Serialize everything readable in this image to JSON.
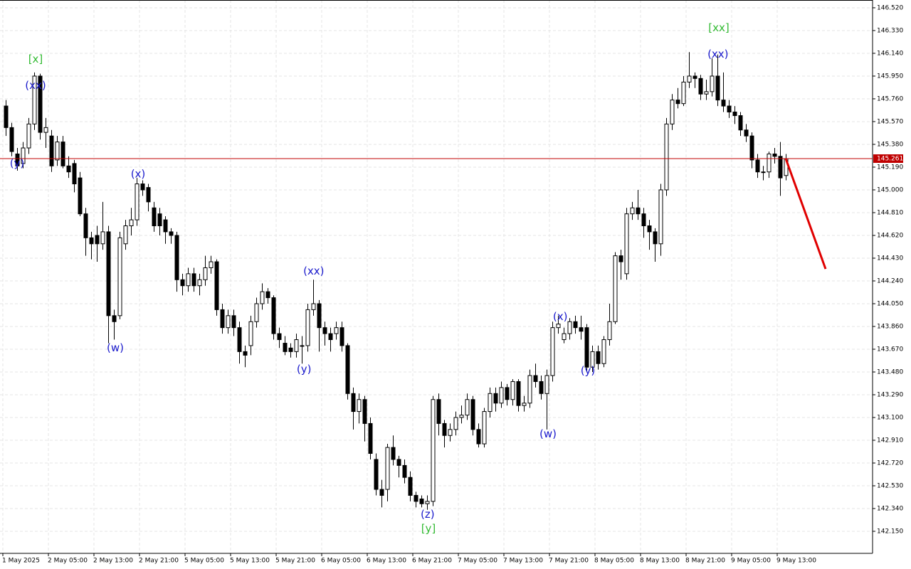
{
  "chart_data": {
    "type": "candlestick",
    "categories": [
      "1 May 2025",
      null,
      null,
      null,
      null,
      null,
      null,
      null,
      "2 May 05:00",
      null,
      null,
      null,
      null,
      null,
      null,
      null,
      "2 May 13:00",
      null,
      null,
      null,
      null,
      null,
      null,
      null,
      "2 May 21:00",
      null,
      null,
      null,
      null,
      null,
      null,
      null,
      "5 May 05:00",
      null,
      null,
      null,
      null,
      null,
      null,
      null,
      "5 May 13:00",
      null,
      null,
      null,
      null,
      null,
      null,
      null,
      "5 May 21:00",
      null,
      null,
      null,
      null,
      null,
      null,
      null,
      "6 May 05:00",
      null,
      null,
      null,
      null,
      null,
      null,
      null,
      "6 May 13:00",
      null,
      null,
      null,
      null,
      null,
      null,
      null,
      "6 May 21:00",
      null,
      null,
      null,
      null,
      null,
      null,
      null,
      "7 May 05:00",
      null,
      null,
      null,
      null,
      null,
      null,
      null,
      "7 May 13:00",
      null,
      null,
      null,
      null,
      null,
      null,
      null,
      "7 May 21:00",
      null,
      null,
      null,
      null,
      null,
      null,
      null,
      "8 May 05:00",
      null,
      null,
      null,
      null,
      null,
      null,
      null,
      "8 May 13:00",
      null,
      null,
      null,
      null,
      null,
      null,
      null,
      "8 May 21:00",
      null,
      null,
      null,
      null,
      null,
      null,
      null,
      "9 May 05:00",
      null,
      null,
      null,
      null,
      null,
      null,
      null,
      "9 May 13:00",
      null
    ],
    "open": [
      145.7,
      145.52,
      145.3,
      145.22,
      145.35,
      145.55,
      145.95,
      145.48,
      145.45,
      145.25,
      145.4,
      145.2,
      145.22,
      145.1,
      144.8,
      144.6,
      144.62,
      144.55,
      144.65,
      143.95,
      143.95,
      144.55,
      144.7,
      144.75,
      145.05,
      145.02,
      144.85,
      144.8,
      144.75,
      144.65,
      144.62,
      144.25,
      144.2,
      144.3,
      144.2,
      144.25,
      144.35,
      144.4,
      144.0,
      143.85,
      143.95,
      143.85,
      143.65,
      143.7,
      143.9,
      144.05,
      144.15,
      144.1,
      143.8,
      143.72,
      143.68,
      143.65,
      143.7,
      143.7,
      144.0,
      144.05,
      143.85,
      143.8,
      143.8,
      143.85,
      143.7,
      143.3,
      143.15,
      143.25,
      143.05,
      142.75,
      142.5,
      142.5,
      142.85,
      142.75,
      142.7,
      142.6,
      142.45,
      142.42,
      142.38,
      142.4,
      143.25,
      143.05,
      142.95,
      143.0,
      143.1,
      143.12,
      143.25,
      143.0,
      142.88,
      143.15,
      143.3,
      143.22,
      143.35,
      143.25,
      143.4,
      143.2,
      143.22,
      143.45,
      143.4,
      143.3,
      143.45,
      143.85,
      143.75,
      143.8,
      143.9,
      143.85,
      143.85,
      143.52,
      143.65,
      143.55,
      143.75,
      143.9,
      144.45,
      144.3,
      144.8,
      144.85,
      144.8,
      144.7,
      144.65,
      144.55,
      145.0,
      145.55,
      145.75,
      145.72,
      145.9,
      145.95,
      145.93,
      145.8,
      145.82,
      145.95,
      145.75,
      145.7,
      145.65,
      145.62,
      145.5,
      145.45,
      145.25,
      145.15,
      145.15,
      145.3,
      145.28,
      145.12
    ],
    "high": [
      145.75,
      145.56,
      145.35,
      145.4,
      145.6,
      145.98,
      145.97,
      145.6,
      145.5,
      145.45,
      145.45,
      145.28,
      145.25,
      145.15,
      144.85,
      144.65,
      144.7,
      144.9,
      144.7,
      144.0,
      144.65,
      144.75,
      144.85,
      145.1,
      145.08,
      145.05,
      144.9,
      144.85,
      144.78,
      144.68,
      144.65,
      144.3,
      144.35,
      144.35,
      144.3,
      144.45,
      144.45,
      144.42,
      144.05,
      144.0,
      144.0,
      143.9,
      143.7,
      143.95,
      144.1,
      144.22,
      144.18,
      144.12,
      143.85,
      143.78,
      143.72,
      143.8,
      143.78,
      144.05,
      144.25,
      144.08,
      143.9,
      143.85,
      143.9,
      143.9,
      143.72,
      143.35,
      143.3,
      143.28,
      143.1,
      142.8,
      142.58,
      142.88,
      142.95,
      142.78,
      142.75,
      142.65,
      142.48,
      142.45,
      142.45,
      143.28,
      143.3,
      143.08,
      143.05,
      143.15,
      143.2,
      143.3,
      143.28,
      143.05,
      143.18,
      143.35,
      143.35,
      143.4,
      143.38,
      143.42,
      143.42,
      143.28,
      143.5,
      143.55,
      143.45,
      143.5,
      143.9,
      143.95,
      143.85,
      143.93,
      143.95,
      143.95,
      143.88,
      143.7,
      143.7,
      143.78,
      144.05,
      144.48,
      144.5,
      144.85,
      144.9,
      145.0,
      144.85,
      144.75,
      144.68,
      145.05,
      145.6,
      145.8,
      145.85,
      145.95,
      146.15,
      145.98,
      145.96,
      145.92,
      146.1,
      146.13,
      145.98,
      145.75,
      145.7,
      145.65,
      145.55,
      145.48,
      145.3,
      145.2,
      145.32,
      145.35,
      145.4,
      145.3
    ],
    "low": [
      145.45,
      145.28,
      145.16,
      145.18,
      145.3,
      145.5,
      145.42,
      145.35,
      145.15,
      145.2,
      145.18,
      145.1,
      144.98,
      144.78,
      144.45,
      144.42,
      144.4,
      144.5,
      143.72,
      143.75,
      143.92,
      144.5,
      144.62,
      144.7,
      144.95,
      144.82,
      144.65,
      144.62,
      144.55,
      144.55,
      144.15,
      144.12,
      144.15,
      144.15,
      144.12,
      144.2,
      144.3,
      143.95,
      143.8,
      143.8,
      143.78,
      143.55,
      143.52,
      143.62,
      143.85,
      144.0,
      144.05,
      143.75,
      143.68,
      143.62,
      143.6,
      143.6,
      143.55,
      143.65,
      143.95,
      143.65,
      143.7,
      143.65,
      143.75,
      143.65,
      143.25,
      143.0,
      143.05,
      142.9,
      142.75,
      142.45,
      142.35,
      142.4,
      142.7,
      142.6,
      142.55,
      142.4,
      142.35,
      142.35,
      142.33,
      142.36,
      142.95,
      142.85,
      142.9,
      142.95,
      143.05,
      143.08,
      142.95,
      142.85,
      142.85,
      143.1,
      143.15,
      143.18,
      143.2,
      143.2,
      143.15,
      143.15,
      143.18,
      143.35,
      143.25,
      143.0,
      143.4,
      143.8,
      143.72,
      143.75,
      143.8,
      143.75,
      143.48,
      143.48,
      143.5,
      143.52,
      143.7,
      143.88,
      144.25,
      144.25,
      144.75,
      144.75,
      144.6,
      144.5,
      144.4,
      144.45,
      144.95,
      145.5,
      145.68,
      145.7,
      145.85,
      145.85,
      145.75,
      145.75,
      145.78,
      145.7,
      145.65,
      145.6,
      145.55,
      145.45,
      145.4,
      145.18,
      145.1,
      145.08,
      145.1,
      145.22,
      144.95,
      145.08
    ],
    "close": [
      145.52,
      145.32,
      145.2,
      145.35,
      145.55,
      145.95,
      145.48,
      145.52,
      145.2,
      145.4,
      145.2,
      145.15,
      145.05,
      144.8,
      144.6,
      144.55,
      144.55,
      144.65,
      143.95,
      143.9,
      144.6,
      144.7,
      144.75,
      145.05,
      145.0,
      144.9,
      144.7,
      144.7,
      144.65,
      144.62,
      144.25,
      144.2,
      144.3,
      144.2,
      144.25,
      144.35,
      144.4,
      144.0,
      143.85,
      143.95,
      143.85,
      143.65,
      143.62,
      143.9,
      144.05,
      144.15,
      144.1,
      143.8,
      143.75,
      143.65,
      143.65,
      143.75,
      143.7,
      144.0,
      144.05,
      143.85,
      143.8,
      143.75,
      143.85,
      143.7,
      143.3,
      143.15,
      143.25,
      143.05,
      142.8,
      142.5,
      142.45,
      142.85,
      142.75,
      142.7,
      142.6,
      142.45,
      142.4,
      142.38,
      142.4,
      143.25,
      143.05,
      142.95,
      143.0,
      143.1,
      143.12,
      143.25,
      143.0,
      142.88,
      143.15,
      143.3,
      143.22,
      143.35,
      143.25,
      143.4,
      143.2,
      143.22,
      143.45,
      143.4,
      143.3,
      143.45,
      143.85,
      143.88,
      143.8,
      143.9,
      143.85,
      143.82,
      143.52,
      143.65,
      143.55,
      143.75,
      143.9,
      144.45,
      144.4,
      144.8,
      144.85,
      144.8,
      144.7,
      144.65,
      144.55,
      145.0,
      145.55,
      145.75,
      145.72,
      145.9,
      145.95,
      145.93,
      145.8,
      145.82,
      145.95,
      145.75,
      145.7,
      145.65,
      145.62,
      145.5,
      145.45,
      145.25,
      145.15,
      145.15,
      145.3,
      145.28,
      145.1,
      145.261
    ],
    "bull_color": "#ffffff",
    "bear_color": "#000000",
    "edge_color": "#000000",
    "xlim": [
      -1,
      152.25
    ],
    "ylim": [
      141.966,
      146.585
    ],
    "yticks": [
      {
        "value": 146.52,
        "label": "146.520"
      },
      {
        "value": 146.33,
        "label": "146.330"
      },
      {
        "value": 146.14,
        "label": "146.140"
      },
      {
        "value": 145.95,
        "label": "145.950"
      },
      {
        "value": 145.76,
        "label": "145.760"
      },
      {
        "value": 145.57,
        "label": "145.570"
      },
      {
        "value": 145.38,
        "label": "145.380"
      },
      {
        "value": 145.19,
        "label": "145.190"
      },
      {
        "value": 145.0,
        "label": "145.000"
      },
      {
        "value": 144.81,
        "label": "144.810"
      },
      {
        "value": 144.62,
        "label": "144.620"
      },
      {
        "value": 144.43,
        "label": "144.430"
      },
      {
        "value": 144.24,
        "label": "144.240"
      },
      {
        "value": 144.05,
        "label": "144.050"
      },
      {
        "value": 143.86,
        "label": "143.860"
      },
      {
        "value": 143.67,
        "label": "143.670"
      },
      {
        "value": 143.48,
        "label": "143.480"
      },
      {
        "value": 143.29,
        "label": "143.290"
      },
      {
        "value": 143.1,
        "label": "143.100"
      },
      {
        "value": 142.91,
        "label": "142.910"
      },
      {
        "value": 142.72,
        "label": "142.720"
      },
      {
        "value": 142.53,
        "label": "142.530"
      },
      {
        "value": 142.34,
        "label": "142.340"
      },
      {
        "value": 142.15,
        "label": "142.150"
      }
    ],
    "grid": true,
    "current_price": {
      "value": 145.261,
      "label": "145.261",
      "color": "#c00000"
    },
    "forecast": {
      "x": [
        137,
        144
      ],
      "values": [
        145.261,
        144.34
      ],
      "color": "#e00000"
    },
    "annotations": [
      {
        "text": "(y)",
        "color": "#1a1acc",
        "x": 2,
        "y": 145.22
      },
      {
        "text": "[x]",
        "color": "#33bb33",
        "x": 5.25,
        "y": 146.09
      },
      {
        "text": "(xx)",
        "color": "#1a1acc",
        "x": 5.25,
        "y": 145.87
      },
      {
        "text": "(w)",
        "color": "#1a1acc",
        "x": 19.25,
        "y": 143.68
      },
      {
        "text": "(x)",
        "color": "#1a1acc",
        "x": 23.25,
        "y": 145.13
      },
      {
        "text": "(xx)",
        "color": "#1a1acc",
        "x": 54.1,
        "y": 144.32
      },
      {
        "text": "(y)",
        "color": "#1a1acc",
        "x": 52.4,
        "y": 143.5
      },
      {
        "text": "(z)",
        "color": "#1a1acc",
        "x": 74.1,
        "y": 142.29
      },
      {
        "text": "[y]",
        "color": "#33bb33",
        "x": 74.25,
        "y": 142.17
      },
      {
        "text": "(w)",
        "color": "#1a1acc",
        "x": 95.25,
        "y": 142.96
      },
      {
        "text": "(x)",
        "color": "#1a1acc",
        "x": 97.4,
        "y": 143.94
      },
      {
        "text": "(y)",
        "color": "#1a1acc",
        "x": 102.25,
        "y": 143.49
      },
      {
        "text": "(xx)",
        "color": "#1a1acc",
        "x": 125.1,
        "y": 146.13
      },
      {
        "text": "[xx]",
        "color": "#33bb33",
        "x": 125.25,
        "y": 146.35
      }
    ]
  }
}
